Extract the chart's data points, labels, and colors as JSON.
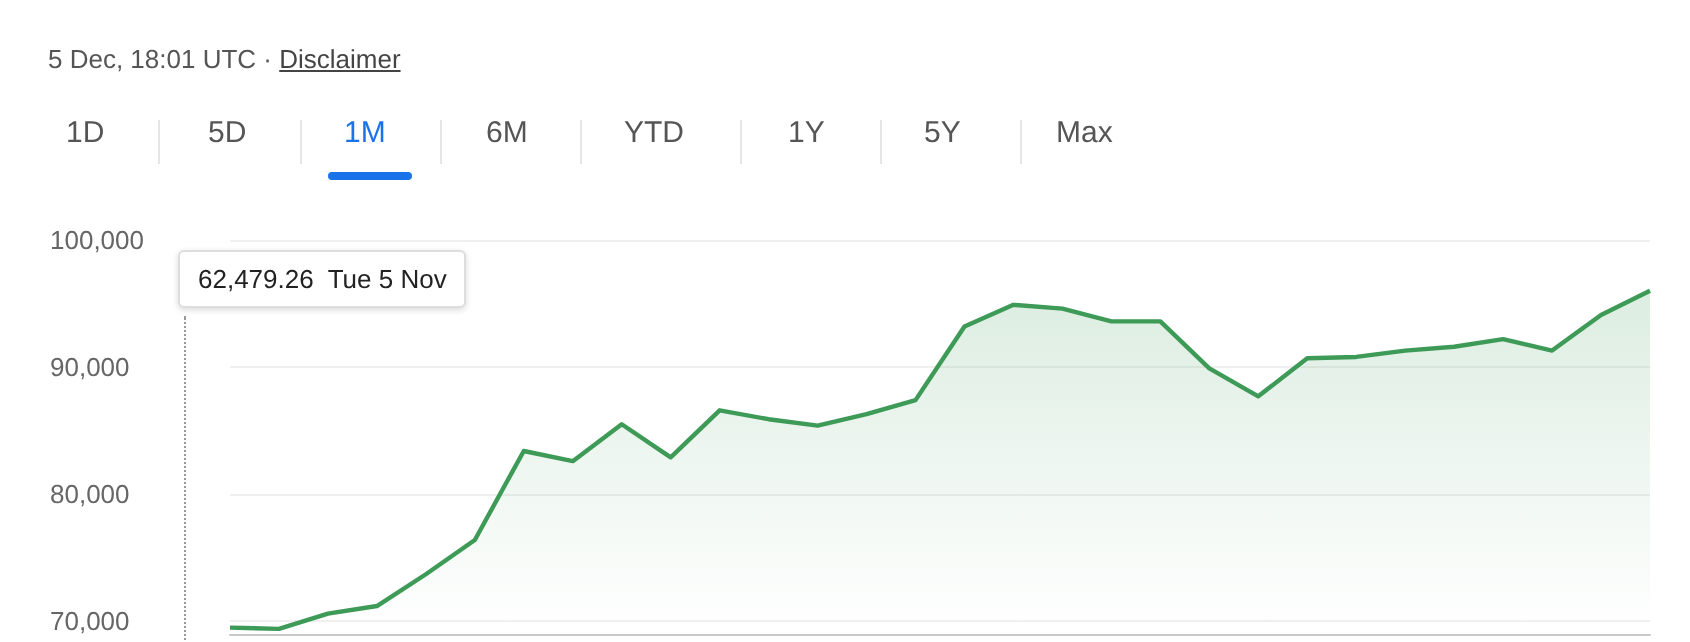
{
  "chart_data": {
    "type": "area",
    "subtitle": "5 Dec, 18:01 UTC · Disclaimer",
    "annotations": [
      "62,479.26  Tue 5 Nov",
      "1D",
      "5D",
      "1M",
      "6M",
      "YTD",
      "1Y",
      "5Y",
      "Max"
    ],
    "categories": [
      null,
      null,
      null,
      null,
      null,
      null,
      null,
      null,
      null,
      null,
      null,
      null,
      null,
      null,
      null,
      null,
      null,
      null,
      null,
      null,
      null,
      null,
      null,
      null,
      null,
      null,
      null,
      null,
      null,
      null
    ],
    "series": [
      {
        "color": "#3d9a57",
        "values": [
          69500,
          69400,
          70600,
          71200,
          73700,
          76400,
          83400,
          82600,
          85500,
          82900,
          86600,
          85900,
          85400,
          86300,
          87400,
          93200,
          94900,
          94600,
          93600,
          93600,
          89900,
          87700,
          90700,
          90800,
          91300,
          91600,
          92200,
          91300,
          94100,
          96000
        ]
      }
    ],
    "ylim": [
      69000,
      100000
    ],
    "yticks": [
      {
        "value": 70000,
        "label": "70,000"
      },
      {
        "value": 80000,
        "label": "80,000"
      },
      {
        "value": 90000,
        "label": "90,000"
      },
      {
        "value": 100000,
        "label": "100,000"
      }
    ],
    "grid": "y",
    "marker": "none",
    "line_style": "solid"
  }
}
